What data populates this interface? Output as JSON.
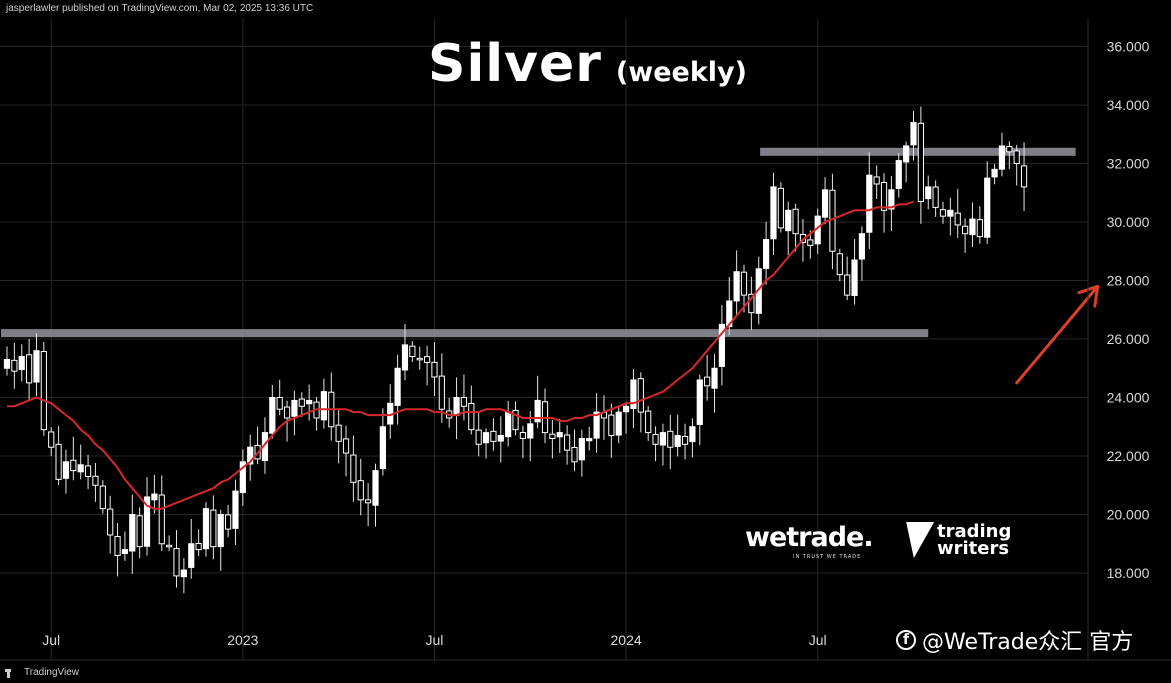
{
  "header": {
    "publisher_note": "jasperlawler published on TradingView.com, Mar 02, 2025 13:36 UTC"
  },
  "footer": {
    "brand": "TradingView"
  },
  "overlay": {
    "title": "Silver",
    "subtitle": "(weekly)",
    "wetrade_logo": "wetrade.",
    "wetrade_tagline": "IN TRUST WE TRADE",
    "trading_writers_line1": "trading",
    "trading_writers_line2": "writers",
    "watermark_text": "@WeTrade众汇 官方",
    "watermark_icon": "f"
  },
  "chart_data": {
    "type": "candlestick",
    "title": "Silver (weekly)",
    "xlabel": "",
    "ylabel": "",
    "ylim": [
      17.4,
      36.8
    ],
    "y_ticks": [
      18,
      20,
      22,
      24,
      26,
      28,
      30,
      32,
      34,
      36
    ],
    "y_tick_labels": [
      "18.000",
      "20.000",
      "22.000",
      "24.000",
      "26.000",
      "28.000",
      "30.000",
      "32.000",
      "34.000",
      "36.000"
    ],
    "x_ticks": [
      {
        "label": "Jul",
        "x": 6
      },
      {
        "label": "2023",
        "x": 32
      },
      {
        "label": "Jul",
        "x": 58
      },
      {
        "label": "2024",
        "x": 84
      },
      {
        "label": "Jul",
        "x": 110
      }
    ],
    "grid": true,
    "candle_up_color": "#ffffff",
    "candle_down_color": "#ffffff",
    "ma_color": "#d62828",
    "level_color": "#8a8a94",
    "arrow_color": "#d9402a",
    "closes": [
      25.3,
      24.9,
      25.4,
      24.5,
      25.6,
      22.9,
      22.3,
      21.2,
      21.8,
      21.5,
      21.7,
      21.3,
      21.0,
      20.2,
      19.3,
      18.6,
      18.8,
      20.0,
      18.9,
      20.6,
      20.7,
      19.0,
      18.9,
      17.9,
      18.1,
      19.0,
      18.8,
      20.2,
      18.9,
      20.0,
      19.5,
      20.8,
      21.8,
      22.3,
      21.9,
      22.8,
      24.0,
      23.6,
      23.3,
      23.9,
      23.7,
      23.9,
      23.3,
      24.2,
      23.0,
      22.5,
      22.1,
      21.1,
      20.5,
      20.4,
      21.5,
      23.0,
      23.8,
      25.0,
      25.8,
      25.4,
      25.3,
      25.2,
      24.7,
      23.6,
      23.3,
      24.0,
      23.7,
      22.9,
      22.4,
      22.8,
      22.5,
      22.7,
      23.5,
      22.9,
      22.6,
      23.1,
      23.9,
      22.8,
      22.6,
      22.8,
      22.2,
      21.8,
      22.6,
      22.6,
      23.5,
      23.3,
      22.7,
      23.5,
      23.7,
      24.6,
      23.5,
      22.8,
      22.4,
      22.8,
      22.3,
      22.7,
      22.4,
      23.0,
      24.6,
      24.4,
      25.0,
      26.5,
      27.3,
      28.3,
      27.5,
      26.9,
      28.4,
      29.4,
      31.2,
      29.8,
      30.4,
      29.6,
      29.3,
      29.2,
      30.2,
      31.1,
      29.0,
      28.2,
      27.5,
      28.7,
      29.6,
      31.6,
      31.3,
      30.4,
      31.1,
      32.1,
      32.6,
      33.4,
      30.7,
      31.2,
      30.5,
      30.2,
      30.4,
      29.9,
      29.6,
      30.1,
      29.5,
      31.5,
      31.8,
      32.6,
      32.4,
      32.0,
      31.2
    ],
    "ma": [
      23.7,
      23.7,
      23.8,
      23.9,
      24.0,
      23.9,
      23.8,
      23.6,
      23.4,
      23.2,
      22.9,
      22.7,
      22.4,
      22.2,
      21.9,
      21.6,
      21.2,
      20.9,
      20.6,
      20.3,
      20.2,
      20.2,
      20.3,
      20.4,
      20.5,
      20.6,
      20.7,
      20.8,
      20.9,
      21.1,
      21.2,
      21.4,
      21.6,
      21.8,
      22.1,
      22.4,
      22.7,
      23.0,
      23.2,
      23.3,
      23.4,
      23.5,
      23.6,
      23.6,
      23.6,
      23.6,
      23.6,
      23.5,
      23.5,
      23.4,
      23.4,
      23.4,
      23.4,
      23.5,
      23.6,
      23.6,
      23.6,
      23.6,
      23.5,
      23.5,
      23.4,
      23.4,
      23.5,
      23.5,
      23.5,
      23.6,
      23.6,
      23.6,
      23.5,
      23.4,
      23.3,
      23.3,
      23.3,
      23.3,
      23.3,
      23.2,
      23.2,
      23.3,
      23.3,
      23.4,
      23.4,
      23.5,
      23.6,
      23.7,
      23.8,
      23.8,
      23.9,
      24.0,
      24.1,
      24.2,
      24.4,
      24.6,
      24.8,
      25.0,
      25.3,
      25.6,
      25.9,
      26.2,
      26.5,
      26.8,
      27.1,
      27.4,
      27.7,
      28.0,
      28.2,
      28.5,
      28.8,
      29.1,
      29.4,
      29.6,
      29.8,
      30.0,
      30.1,
      30.2,
      30.3,
      30.4,
      30.4,
      30.4,
      30.5,
      30.5,
      30.5,
      30.6,
      30.6,
      30.7
    ],
    "levels": [
      {
        "price": 26.2,
        "x_start": 0,
        "x_end": 125
      },
      {
        "price": 32.4,
        "x_start": 103,
        "x_end": 145
      }
    ],
    "arrow": {
      "x_start": 137,
      "y_start": 24.5,
      "x_end": 148,
      "y_end": 27.8
    }
  }
}
